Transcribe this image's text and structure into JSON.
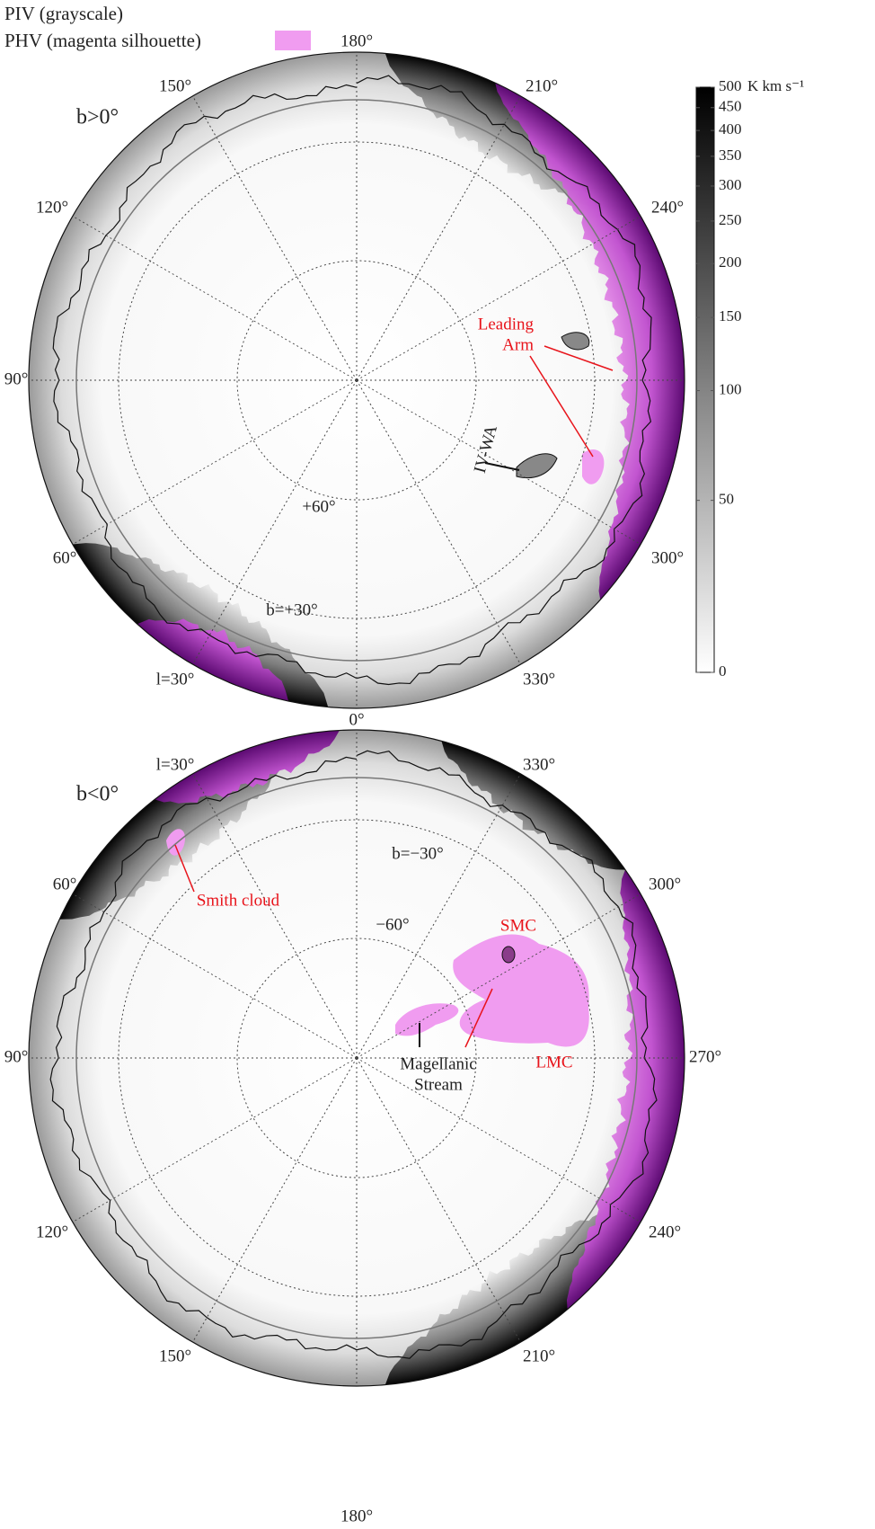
{
  "legend": {
    "items": [
      {
        "label": "PIV (grayscale)"
      },
      {
        "label": "PHV (magenta silhouette)",
        "color": "#f09cf0"
      }
    ]
  },
  "colorbar": {
    "unit": "K km s⁻¹",
    "lim": [
      0,
      500
    ],
    "ticks": [
      0,
      50,
      100,
      150,
      200,
      250,
      300,
      350,
      400,
      450,
      500
    ],
    "scale": "asinh"
  },
  "panels": [
    {
      "label": "b>0°",
      "longitudes": [
        "180°",
        "210°",
        "240°",
        "300°",
        "330°",
        "l=30°",
        "60°",
        "90°",
        "120°",
        "150°"
      ],
      "latitudes": [
        "+60°",
        "b=+30°"
      ],
      "annotations": {
        "leading_arm": [
          "Leading",
          "Arm"
        ],
        "iv_wa": "IV-WA"
      }
    },
    {
      "label": "b<0°",
      "longitudes": [
        "0°",
        "330°",
        "300°",
        "270°",
        "240°",
        "210°",
        "180°",
        "150°",
        "120°",
        "90°",
        "60°",
        "l=30°"
      ],
      "latitudes": [
        "−60°",
        "b=−30°"
      ],
      "annotations": {
        "smith": "Smith cloud",
        "smc": "SMC",
        "lmc": "LMC",
        "stream": [
          "Magellanic",
          "Stream"
        ]
      }
    }
  ]
}
